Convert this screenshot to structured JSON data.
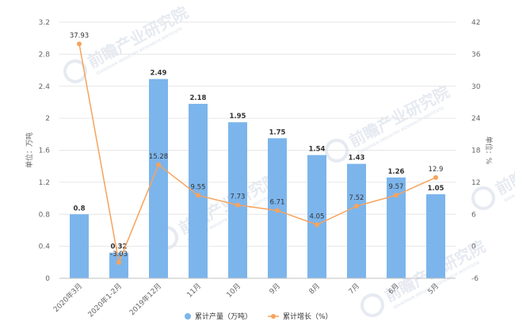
{
  "chart_data": {
    "type": "bar",
    "categories": [
      "2020年3月",
      "2020年1-2月",
      "2019年12月",
      "11月",
      "10月",
      "9月",
      "8月",
      "7月",
      "6月",
      "5月"
    ],
    "series": [
      {
        "name": "累计产量（万吨）",
        "type": "bar",
        "axis": "left",
        "color": "#7cb5ec",
        "values": [
          0.8,
          0.32,
          2.49,
          2.18,
          1.95,
          1.75,
          1.54,
          1.43,
          1.26,
          1.05
        ],
        "labels": [
          "0.8",
          "0.32",
          "2.49",
          "2.18",
          "1.95",
          "1.75",
          "1.54",
          "1.43",
          "1.26",
          "1.05"
        ]
      },
      {
        "name": "累计增长（%）",
        "type": "line",
        "axis": "right",
        "color": "#f7a35c",
        "values": [
          37.93,
          -3.03,
          15.28,
          9.55,
          7.73,
          6.71,
          4.05,
          7.52,
          9.57,
          12.9
        ],
        "labels": [
          "37.93",
          "-3.03",
          "15.28",
          "9.55",
          "7.73",
          "6.71",
          "4.05",
          "7.52",
          "9.57",
          "12.9"
        ]
      }
    ],
    "left_axis": {
      "title": "单位：万吨",
      "min": 0,
      "max": 3.2,
      "ticks": [
        "0",
        "0.4",
        "0.8",
        "1.2",
        "1.6",
        "2",
        "2.4",
        "2.8",
        "3.2"
      ]
    },
    "right_axis": {
      "title": "单位：%",
      "min": -6,
      "max": 42,
      "ticks": [
        "-6",
        "0",
        "6",
        "12",
        "18",
        "24",
        "30",
        "36",
        "42"
      ]
    },
    "grid": true,
    "legend_position": "bottom-center"
  },
  "watermark": {
    "text": "前瞻产业研究院",
    "subtext": "QIANZHAN INDUSTRY RESEARCH INSTITUTE"
  }
}
